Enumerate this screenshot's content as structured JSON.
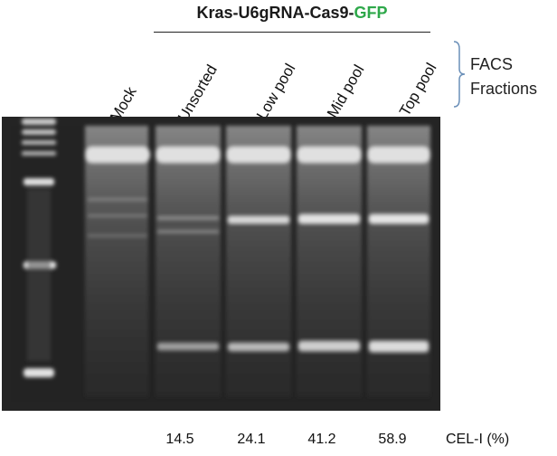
{
  "figure": {
    "title_main": "Kras-U6gRNA-Cas9-",
    "title_accent": "GFP",
    "accent_color": "#2ea84a",
    "lanes": [
      "Mock",
      "Unsorted",
      "Low pool",
      "Mid pool",
      "Top pool"
    ],
    "bracket_label_line1": "FACS",
    "bracket_label_line2": "Fractions",
    "cel_values": [
      "14.5",
      "24.1",
      "41.2",
      "58.9"
    ],
    "cel_label": "CEL-I (%)"
  }
}
